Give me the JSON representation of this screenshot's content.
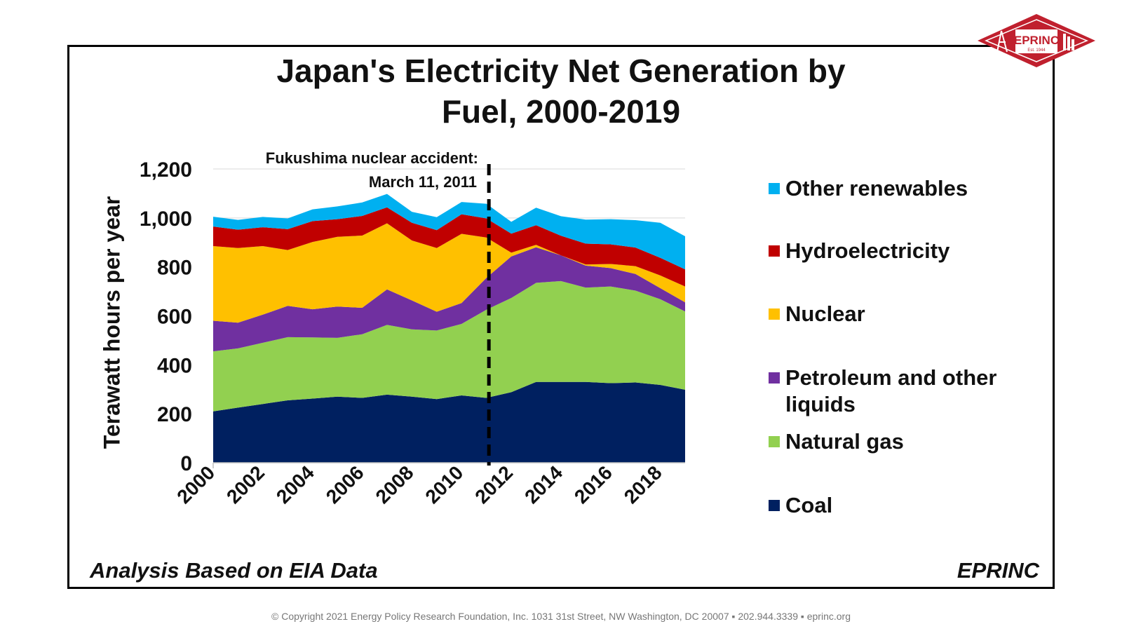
{
  "chart_data": {
    "type": "area",
    "stacked": true,
    "title_lines": [
      "Japan's Electricity Net Generation by",
      "Fuel, 2000-2019"
    ],
    "ylabel": "Terawatt hours per year",
    "ylim": [
      0,
      1200
    ],
    "yticks": [
      0,
      200,
      400,
      600,
      800,
      1000,
      1200
    ],
    "ytick_labels": [
      "0",
      "200",
      "400",
      "600",
      "800",
      "1,000",
      "1,200"
    ],
    "x": [
      2000,
      2001,
      2002,
      2003,
      2004,
      2005,
      2006,
      2007,
      2008,
      2009,
      2010,
      2011,
      2012,
      2013,
      2014,
      2015,
      2016,
      2017,
      2018,
      2019
    ],
    "xtick_labels": [
      "2000",
      "2002",
      "2004",
      "2006",
      "2008",
      "2010",
      "2012",
      "2014",
      "2016",
      "2018"
    ],
    "grid": "horizontal",
    "legend_position": "right",
    "series": [
      {
        "name": "Coal",
        "color": "#002060",
        "values": [
          210,
          225,
          240,
          255,
          262,
          270,
          265,
          278,
          270,
          260,
          275,
          265,
          288,
          330,
          330,
          330,
          325,
          328,
          318,
          298
        ]
      },
      {
        "name": "Natural gas",
        "color": "#92D050",
        "values": [
          245,
          242,
          250,
          258,
          250,
          240,
          260,
          285,
          275,
          280,
          292,
          360,
          385,
          405,
          412,
          385,
          395,
          375,
          350,
          320
        ]
      },
      {
        "name": "Petroleum and other liquids",
        "color": "#7030A0",
        "values": [
          125,
          105,
          115,
          128,
          115,
          128,
          108,
          145,
          118,
          77,
          85,
          130,
          170,
          145,
          105,
          90,
          75,
          68,
          45,
          37
        ]
      },
      {
        "name": "Nuclear",
        "color": "#FFC000",
        "values": [
          305,
          305,
          280,
          228,
          275,
          285,
          295,
          270,
          245,
          260,
          283,
          165,
          15,
          10,
          0,
          5,
          17,
          32,
          52,
          65
        ]
      },
      {
        "name": "Hydroelectricity",
        "color": "#C00000",
        "values": [
          80,
          75,
          77,
          85,
          85,
          72,
          80,
          65,
          72,
          73,
          80,
          78,
          78,
          80,
          80,
          85,
          80,
          76,
          72,
          70
        ]
      },
      {
        "name": "Other renewables",
        "color": "#00B0F0",
        "values": [
          40,
          40,
          42,
          44,
          48,
          52,
          55,
          55,
          45,
          53,
          50,
          60,
          48,
          72,
          80,
          98,
          103,
          112,
          143,
          135
        ]
      }
    ],
    "annotations": [
      {
        "text_lines": [
          "Fukushima nuclear accident:",
          "March 11, 2011"
        ],
        "x": 2011.1,
        "style": "dashed vertical line"
      }
    ]
  },
  "legend_order": [
    "Other renewables",
    "Hydroelectricity",
    "Nuclear",
    "Petroleum and other liquids",
    "Natural gas",
    "Coal"
  ],
  "source_note": "Analysis Based on EIA Data",
  "brand_label": "EPRINC",
  "logo": {
    "name": "EPRINC",
    "ring_top": "ENERGY POLICY",
    "est": "Est. 1944",
    "ring_bottom": "RESEARCH FOUNDATION INC.",
    "color": "#C0202E"
  },
  "footer_text": "© Copyright 2021 Energy Policy Research Foundation, Inc. 1031 31st Street, NW Washington, DC 20007 ▪ 202.944.3339 ▪ eprinc.org"
}
